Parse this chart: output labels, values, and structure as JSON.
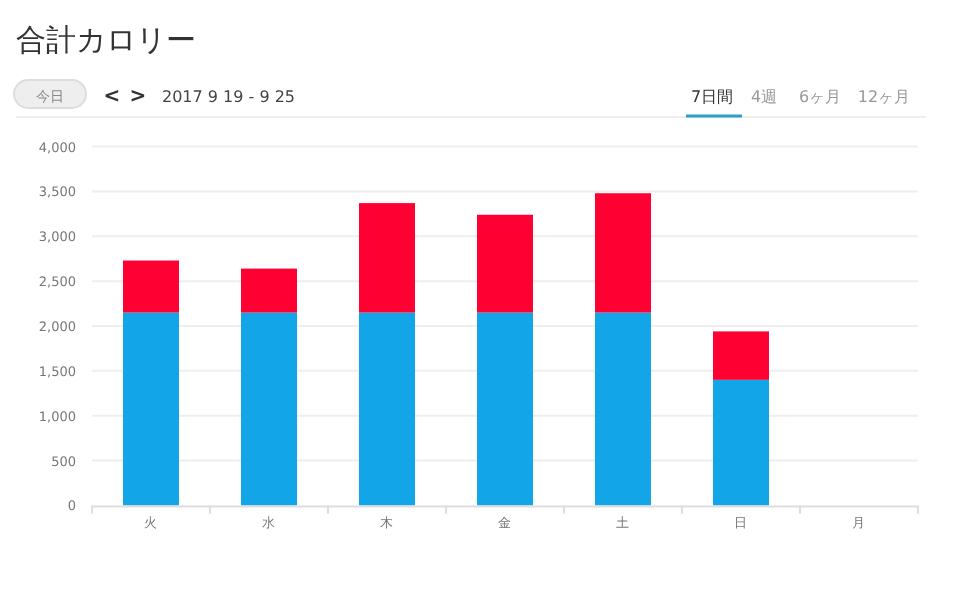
{
  "chart_data": {
    "type": "bar",
    "title": "合計カロリー",
    "annotations": [
      "今日",
      "<",
      ">",
      "2017 9 19 - 9 25",
      "7日間",
      "4週",
      "6ヶ月",
      "12ヶ月"
    ],
    "categories": [
      "火",
      "水",
      "木",
      "金",
      "土",
      "日",
      "月"
    ],
    "stacked": true,
    "series": [
      {
        "color": "#12a5e8",
        "values": [
          2150,
          2150,
          2150,
          2150,
          2150,
          1400,
          null
        ]
      },
      {
        "color": "#ff0033",
        "values": [
          580,
          490,
          1220,
          1090,
          1330,
          540,
          null
        ]
      }
    ],
    "ylim": [
      0,
      4000
    ],
    "yticks": [
      {
        "value": 0,
        "label": "0"
      },
      {
        "value": 500,
        "label": "500"
      },
      {
        "value": 1000,
        "label": "1,000"
      },
      {
        "value": 1500,
        "label": "1,500"
      },
      {
        "value": 2000,
        "label": "2,000"
      },
      {
        "value": 2500,
        "label": "2,500"
      },
      {
        "value": 3000,
        "label": "3,000"
      },
      {
        "value": 3500,
        "label": "3,500"
      },
      {
        "value": 4000,
        "label": "4,000"
      }
    ],
    "grid": "y"
  }
}
